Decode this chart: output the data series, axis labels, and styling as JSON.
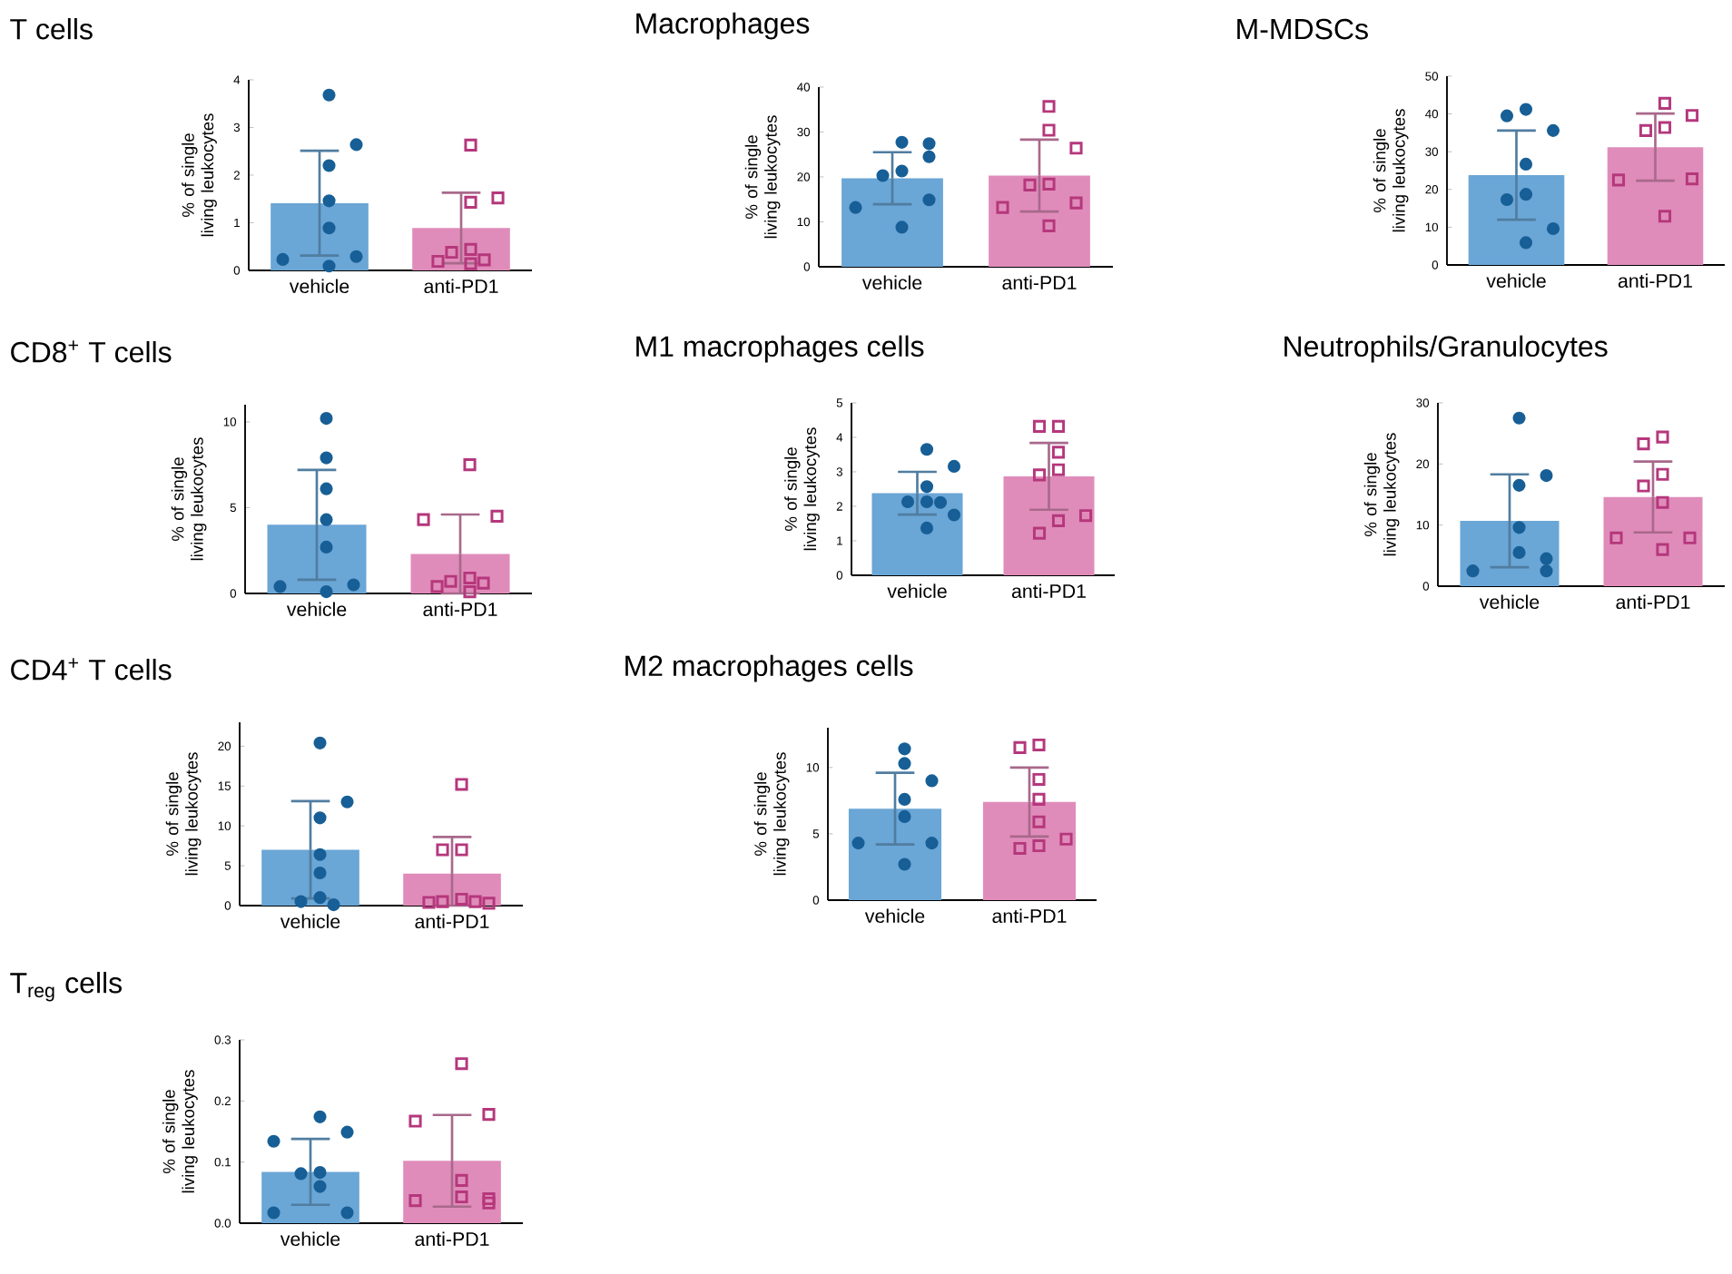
{
  "chart_data": [
    {
      "type": "bar",
      "title": "T cells",
      "ylabel": "% of single living leukocytes",
      "categories": [
        "vehicle",
        "anti-PD1"
      ],
      "ylim": [
        0,
        4
      ],
      "yticks": [
        0,
        1,
        2,
        3,
        4
      ],
      "series": [
        {
          "colors": [
            "#6aa6d6",
            "#e08cba"
          ],
          "values": [
            1.41,
            0.89
          ],
          "errors": [
            1.1,
            0.74
          ]
        },
        {
          "type": "scatter",
          "marker": "circle",
          "color": "#175f96",
          "x": [
            "vehicle",
            "vehicle",
            "vehicle",
            "vehicle",
            "vehicle",
            "vehicle",
            "vehicle",
            "vehicle"
          ],
          "values": [
            3.68,
            2.64,
            2.2,
            1.46,
            0.89,
            0.29,
            0.23,
            0.09
          ]
        },
        {
          "type": "scatter",
          "marker": "square",
          "color": "#b5377c",
          "x": [
            "anti-PD1",
            "anti-PD1",
            "anti-PD1",
            "anti-PD1",
            "anti-PD1",
            "anti-PD1",
            "anti-PD1",
            "anti-PD1"
          ],
          "values": [
            2.63,
            1.52,
            1.43,
            0.44,
            0.38,
            0.19,
            0.22,
            0.14
          ]
        }
      ]
    },
    {
      "type": "bar",
      "title": "Macrophages",
      "ylabel": "% of single living leukocytes",
      "categories": [
        "vehicle",
        "anti-PD1"
      ],
      "ylim": [
        0,
        40
      ],
      "yticks": [
        0,
        10,
        20,
        30,
        40
      ],
      "series": [
        {
          "colors": [
            "#6aa6d6",
            "#e08cba"
          ],
          "values": [
            19.7,
            20.3
          ],
          "errors": [
            5.8,
            8
          ]
        },
        {
          "type": "scatter",
          "marker": "circle",
          "color": "#175f96",
          "x": [
            "vehicle",
            "vehicle",
            "vehicle",
            "vehicle",
            "vehicle",
            "vehicle",
            "vehicle",
            "vehicle"
          ],
          "values": [
            27.4,
            27.7,
            24.5,
            21.3,
            20.3,
            14.9,
            13.2,
            8.8
          ]
        },
        {
          "type": "scatter",
          "marker": "square",
          "color": "#b5377c",
          "x": [
            "anti-PD1",
            "anti-PD1",
            "anti-PD1",
            "anti-PD1",
            "anti-PD1",
            "anti-PD1",
            "anti-PD1",
            "anti-PD1"
          ],
          "values": [
            35.7,
            30.4,
            26.4,
            18.4,
            18.2,
            14.2,
            13.2,
            9.1
          ]
        }
      ]
    },
    {
      "type": "bar",
      "title": "M-MDSCs",
      "ylabel": "% of single living leukocytes",
      "categories": [
        "vehicle",
        "anti-PD1"
      ],
      "ylim": [
        0,
        50
      ],
      "yticks": [
        0,
        10,
        20,
        30,
        40,
        50
      ],
      "series": [
        {
          "colors": [
            "#6aa6d6",
            "#e08cba"
          ],
          "values": [
            23.8,
            31.2
          ],
          "errors": [
            11.8,
            8.9
          ]
        },
        {
          "type": "scatter",
          "marker": "circle",
          "color": "#175f96",
          "x": [
            "vehicle",
            "vehicle",
            "vehicle",
            "vehicle",
            "vehicle",
            "vehicle",
            "vehicle",
            "vehicle"
          ],
          "values": [
            41.2,
            39.5,
            35.6,
            26.7,
            18.7,
            17.3,
            9.6,
            5.9
          ]
        },
        {
          "type": "scatter",
          "marker": "square",
          "color": "#b5377c",
          "x": [
            "anti-PD1",
            "anti-PD1",
            "anti-PD1",
            "anti-PD1",
            "anti-PD1",
            "anti-PD1",
            "anti-PD1"
          ],
          "values": [
            42.8,
            39.6,
            36.4,
            35.6,
            22.8,
            22.5,
            12.9
          ]
        }
      ]
    },
    {
      "type": "bar",
      "title": "CD8$^{+}$ T cells",
      "ylabel": "% of single living leukocytes",
      "categories": [
        "vehicle",
        "anti-PD1"
      ],
      "ylim": [
        0,
        11
      ],
      "yticks": [
        0,
        5,
        10
      ],
      "series": [
        {
          "colors": [
            "#6aa6d6",
            "#e08cba"
          ],
          "values": [
            4.0,
            2.3
          ],
          "errors": [
            3.2,
            2.3
          ]
        },
        {
          "type": "scatter",
          "marker": "circle",
          "color": "#175f96",
          "x": [
            "vehicle",
            "vehicle",
            "vehicle",
            "vehicle",
            "vehicle",
            "vehicle",
            "vehicle",
            "vehicle"
          ],
          "values": [
            10.2,
            7.9,
            6.1,
            4.3,
            2.7,
            0.5,
            0.4,
            0.1
          ]
        },
        {
          "type": "scatter",
          "marker": "square",
          "color": "#b5377c",
          "x": [
            "anti-PD1",
            "anti-PD1",
            "anti-PD1",
            "anti-PD1",
            "anti-PD1",
            "anti-PD1",
            "anti-PD1",
            "anti-PD1"
          ],
          "values": [
            7.5,
            4.5,
            4.3,
            0.9,
            0.7,
            0.4,
            0.6,
            0.1
          ]
        }
      ]
    },
    {
      "type": "bar",
      "title": "M1 macrophages cells",
      "ylabel": "% of single living leukocytes",
      "categories": [
        "vehicle",
        "anti-PD1"
      ],
      "ylim": [
        0,
        5
      ],
      "yticks": [
        0,
        1,
        2,
        3,
        4,
        5
      ],
      "series": [
        {
          "colors": [
            "#6aa6d6",
            "#e08cba"
          ],
          "values": [
            2.38,
            2.87
          ],
          "errors": [
            0.62,
            0.97
          ]
        },
        {
          "type": "scatter",
          "marker": "circle",
          "color": "#175f96",
          "x": [
            "vehicle",
            "vehicle",
            "vehicle",
            "vehicle",
            "vehicle",
            "vehicle",
            "vehicle",
            "vehicle"
          ],
          "values": [
            3.65,
            3.16,
            2.57,
            2.13,
            2.13,
            2.11,
            1.75,
            1.37
          ]
        },
        {
          "type": "scatter",
          "marker": "square",
          "color": "#b5377c",
          "x": [
            "anti-PD1",
            "anti-PD1",
            "anti-PD1",
            "anti-PD1",
            "anti-PD1",
            "anti-PD1",
            "anti-PD1",
            "anti-PD1"
          ],
          "values": [
            4.32,
            4.32,
            3.57,
            3.06,
            2.91,
            1.73,
            1.58,
            1.22
          ]
        }
      ]
    },
    {
      "type": "bar",
      "title": "Neutrophils/Granulocytes",
      "ylabel": "% of single living leukocytes",
      "categories": [
        "vehicle",
        "anti-PD1"
      ],
      "ylim": [
        0,
        30
      ],
      "yticks": [
        0,
        10,
        20,
        30
      ],
      "series": [
        {
          "colors": [
            "#6aa6d6",
            "#e08cba"
          ],
          "values": [
            10.7,
            14.6
          ],
          "errors": [
            7.6,
            5.8
          ]
        },
        {
          "type": "scatter",
          "marker": "circle",
          "color": "#175f96",
          "x": [
            "vehicle",
            "vehicle",
            "vehicle",
            "vehicle",
            "vehicle",
            "vehicle",
            "vehicle",
            "vehicle"
          ],
          "values": [
            27.5,
            18.1,
            16.5,
            9.6,
            5.5,
            4.5,
            2.5,
            2.5
          ]
        },
        {
          "type": "scatter",
          "marker": "square",
          "color": "#b5377c",
          "x": [
            "anti-PD1",
            "anti-PD1",
            "anti-PD1",
            "anti-PD1",
            "anti-PD1",
            "anti-PD1",
            "anti-PD1",
            "anti-PD1"
          ],
          "values": [
            24.4,
            23.3,
            18.3,
            16.4,
            13.7,
            7.9,
            7.9,
            6.0
          ]
        }
      ]
    },
    {
      "type": "bar",
      "title": "CD4$^{+}$ T cells",
      "ylabel": "% of single living leukocytes",
      "categories": [
        "vehicle",
        "anti-PD1"
      ],
      "ylim": [
        0,
        23
      ],
      "yticks": [
        0,
        5,
        10,
        15,
        20
      ],
      "series": [
        {
          "colors": [
            "#6aa6d6",
            "#e08cba"
          ],
          "values": [
            7.0,
            4.0
          ],
          "errors": [
            6.1,
            [
              0,
              8.6
            ]
          ]
        },
        {
          "type": "scatter",
          "marker": "circle",
          "color": "#175f96",
          "x": [
            "vehicle",
            "vehicle",
            "vehicle",
            "vehicle",
            "vehicle",
            "vehicle",
            "vehicle",
            "vehicle"
          ],
          "values": [
            20.4,
            13.0,
            11.0,
            6.4,
            4.1,
            1.0,
            0.5,
            0.1
          ]
        },
        {
          "type": "scatter",
          "marker": "square",
          "color": "#b5377c",
          "x": [
            "anti-PD1",
            "anti-PD1",
            "anti-PD1",
            "anti-PD1",
            "anti-PD1",
            "anti-PD1",
            "anti-PD1",
            "anti-PD1"
          ],
          "values": [
            15.2,
            7.0,
            7.0,
            0.8,
            0.5,
            0.5,
            0.4,
            0.3
          ]
        }
      ]
    },
    {
      "type": "bar",
      "title": "M2 macrophages cells",
      "ylabel": "% of single living leukocytes",
      "categories": [
        "vehicle",
        "anti-PD1"
      ],
      "ylim": [
        0,
        13
      ],
      "yticks": [
        0,
        5,
        10
      ],
      "series": [
        {
          "colors": [
            "#6aa6d6",
            "#e08cba"
          ],
          "values": [
            6.9,
            7.4
          ],
          "errors": [
            2.7,
            2.6
          ]
        },
        {
          "type": "scatter",
          "marker": "circle",
          "color": "#175f96",
          "x": [
            "vehicle",
            "vehicle",
            "vehicle",
            "vehicle",
            "vehicle",
            "vehicle",
            "vehicle",
            "vehicle"
          ],
          "values": [
            11.4,
            10.3,
            9.0,
            7.6,
            6.3,
            4.3,
            4.3,
            2.7
          ]
        },
        {
          "type": "scatter",
          "marker": "square",
          "color": "#b5377c",
          "x": [
            "anti-PD1",
            "anti-PD1",
            "anti-PD1",
            "anti-PD1",
            "anti-PD1",
            "anti-PD1",
            "anti-PD1",
            "anti-PD1"
          ],
          "values": [
            11.7,
            11.5,
            9.1,
            7.6,
            5.9,
            4.6,
            3.9,
            4.1
          ]
        }
      ]
    },
    {
      "type": "bar",
      "title": "T$_{reg}$ cells",
      "ylabel": "% of single living leukocytes",
      "categories": [
        "vehicle",
        "anti-PD1"
      ],
      "ylim": [
        0,
        0.3
      ],
      "yticks": [
        {
          "value": 0,
          "label": "0.0"
        },
        0.1,
        0.2,
        0.3
      ],
      "series": [
        {
          "colors": [
            "#6aa6d6",
            "#e08cba"
          ],
          "values": [
            0.084,
            0.102
          ],
          "errors": [
            0.054,
            0.075
          ]
        },
        {
          "type": "scatter",
          "marker": "circle",
          "color": "#175f96",
          "x": [
            "vehicle",
            "vehicle",
            "vehicle",
            "vehicle",
            "vehicle",
            "vehicle",
            "vehicle",
            "vehicle"
          ],
          "values": [
            0.174,
            0.149,
            0.134,
            0.083,
            0.081,
            0.06,
            0.017,
            0.017
          ]
        },
        {
          "type": "scatter",
          "marker": "square",
          "color": "#b5377c",
          "x": [
            "anti-PD1",
            "anti-PD1",
            "anti-PD1",
            "anti-PD1",
            "anti-PD1",
            "anti-PD1",
            "anti-PD1",
            "anti-PD1"
          ],
          "values": [
            0.261,
            0.178,
            0.167,
            0.07,
            0.043,
            0.04,
            0.037,
            0.033
          ]
        }
      ]
    }
  ]
}
